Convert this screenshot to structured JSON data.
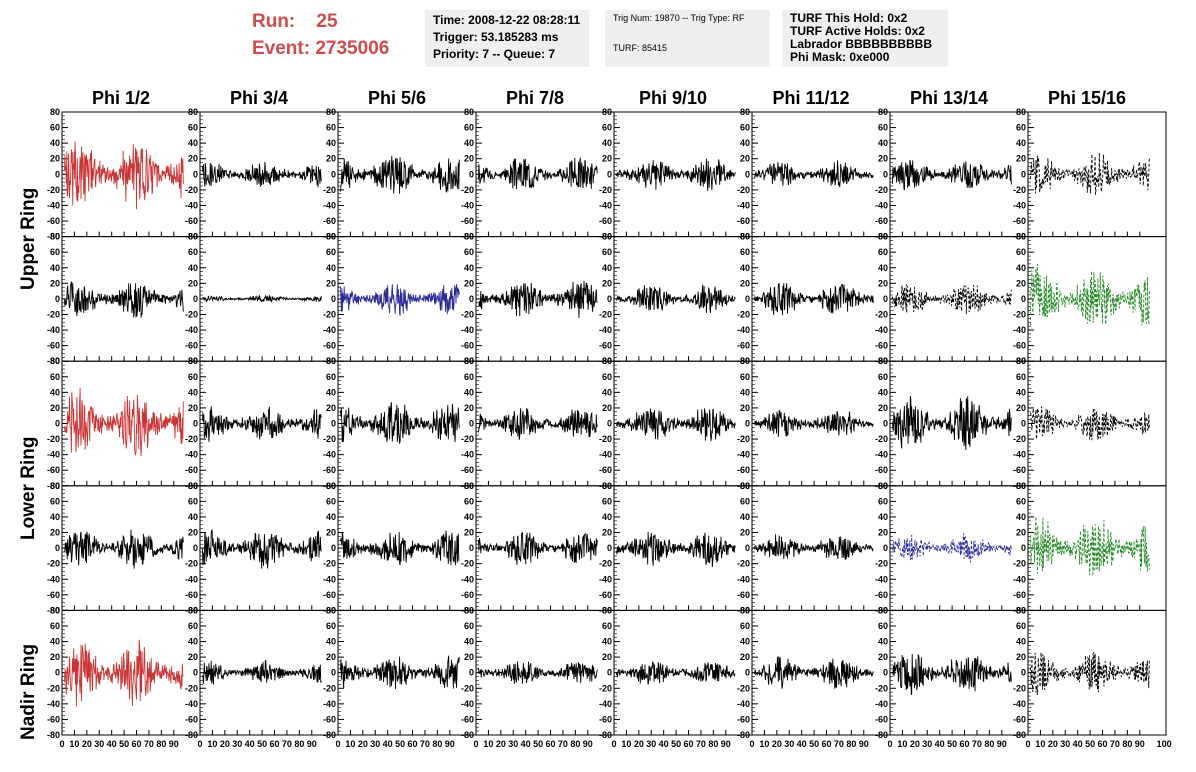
{
  "run": {
    "run_label": "Run:",
    "run_value": "25",
    "event_label": "Event:",
    "event_value": "2735006"
  },
  "info_box_1": {
    "time": "Time: 2008-12-22 08:28:11",
    "trigger": "Trigger: 53.185283 ms",
    "priority": "Priority: 7 -- Queue: 7"
  },
  "info_box_2": {
    "trig": "Trig Num: 19870 -- Trig Type: RF",
    "turf": "TURF: 85415"
  },
  "info_box_3": {
    "hold": "TURF This Hold: 0x2",
    "active": "TURF Active Holds: 0x2",
    "labrador": "Labrador BBBBBBBBBB",
    "phimask": "Phi Mask: 0xe000"
  },
  "chart_data": {
    "type": "line",
    "columns": [
      "Phi 1/2",
      "Phi 3/4",
      "Phi 5/6",
      "Phi 7/8",
      "Phi 9/10",
      "Phi 11/12",
      "Phi 13/14",
      "Phi 15/16"
    ],
    "ring_labels": [
      "Upper Ring",
      "Lower Ring",
      "Nadir Ring"
    ],
    "ylim": [
      -80,
      80
    ],
    "yticks": [
      -80,
      -60,
      -40,
      -20,
      0,
      20,
      40,
      60,
      80
    ],
    "xlim": [
      0,
      100
    ],
    "xticks": [
      0,
      10,
      20,
      30,
      40,
      50,
      60,
      70,
      80,
      90,
      100
    ],
    "colors": {
      "red": "#cc3333",
      "blue": "#2a2a9a",
      "green": "#228b22",
      "black": "#000000"
    },
    "panels": [
      [
        {
          "color": "red",
          "amp": 28,
          "style": "solid"
        },
        {
          "color": "black",
          "amp": 12,
          "style": "solid"
        },
        {
          "color": "black",
          "amp": 18,
          "style": "solid"
        },
        {
          "color": "black",
          "amp": 15,
          "style": "solid"
        },
        {
          "color": "black",
          "amp": 14,
          "style": "solid"
        },
        {
          "color": "black",
          "amp": 11,
          "style": "solid"
        },
        {
          "color": "black",
          "amp": 14,
          "style": "solid"
        },
        {
          "color": "black",
          "amp": 18,
          "style": "dashed"
        }
      ],
      [
        {
          "color": "black",
          "amp": 16,
          "style": "solid"
        },
        {
          "color": "black",
          "amp": 3,
          "style": "solid"
        },
        {
          "color": "blue",
          "amp": 14,
          "style": "solid"
        },
        {
          "color": "black",
          "amp": 16,
          "style": "solid"
        },
        {
          "color": "black",
          "amp": 12,
          "style": "solid"
        },
        {
          "color": "black",
          "amp": 14,
          "style": "solid"
        },
        {
          "color": "black",
          "amp": 14,
          "style": "dashed"
        },
        {
          "color": "green",
          "amp": 28,
          "style": "dashed"
        }
      ],
      [
        {
          "color": "red",
          "amp": 28,
          "style": "solid"
        },
        {
          "color": "black",
          "amp": 15,
          "style": "solid"
        },
        {
          "color": "black",
          "amp": 20,
          "style": "solid"
        },
        {
          "color": "black",
          "amp": 14,
          "style": "solid"
        },
        {
          "color": "black",
          "amp": 15,
          "style": "solid"
        },
        {
          "color": "black",
          "amp": 12,
          "style": "solid"
        },
        {
          "color": "black",
          "amp": 22,
          "style": "solid"
        },
        {
          "color": "black",
          "amp": 15,
          "style": "dashed"
        }
      ],
      [
        {
          "color": "black",
          "amp": 17,
          "style": "solid"
        },
        {
          "color": "black",
          "amp": 16,
          "style": "solid"
        },
        {
          "color": "black",
          "amp": 16,
          "style": "solid"
        },
        {
          "color": "black",
          "amp": 14,
          "style": "solid"
        },
        {
          "color": "black",
          "amp": 15,
          "style": "solid"
        },
        {
          "color": "black",
          "amp": 12,
          "style": "solid"
        },
        {
          "color": "blue",
          "amp": 12,
          "style": "dashed"
        },
        {
          "color": "green",
          "amp": 26,
          "style": "dashed"
        }
      ],
      [
        {
          "color": "red",
          "amp": 28,
          "style": "solid"
        },
        {
          "color": "black",
          "amp": 10,
          "style": "solid"
        },
        {
          "color": "black",
          "amp": 15,
          "style": "solid"
        },
        {
          "color": "black",
          "amp": 11,
          "style": "solid"
        },
        {
          "color": "black",
          "amp": 11,
          "style": "solid"
        },
        {
          "color": "black",
          "amp": 14,
          "style": "solid"
        },
        {
          "color": "black",
          "amp": 18,
          "style": "solid"
        },
        {
          "color": "black",
          "amp": 18,
          "style": "dashed"
        }
      ]
    ]
  }
}
